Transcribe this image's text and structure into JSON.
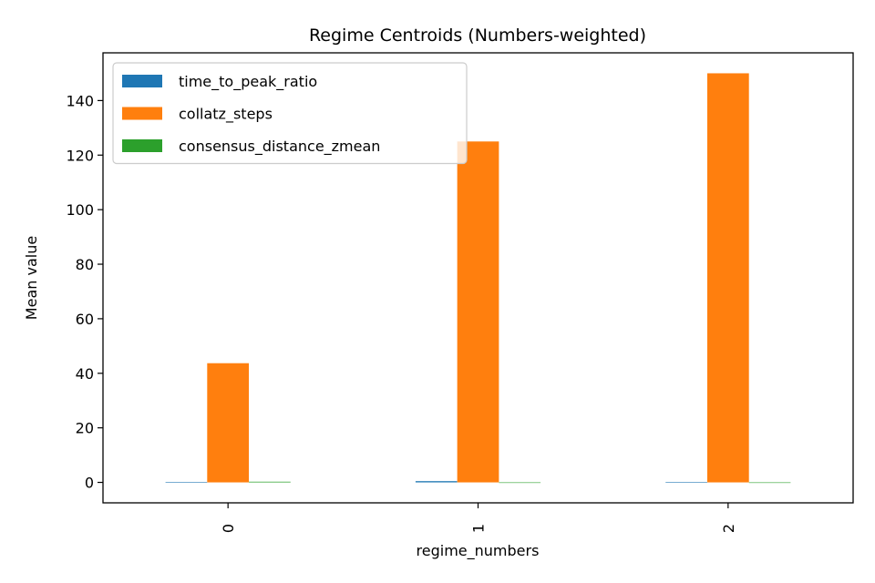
{
  "chart_data": {
    "type": "bar",
    "title": "Regime Centroids (Numbers-weighted)",
    "xlabel": "regime_numbers",
    "ylabel": "Mean value",
    "categories": [
      "0",
      "1",
      "2"
    ],
    "series": [
      {
        "name": "time_to_peak_ratio",
        "color": "#1f77b4",
        "values": [
          0.1,
          0.45,
          0.15
        ]
      },
      {
        "name": "collatz_steps",
        "color": "#ff7f0e",
        "values": [
          43.7,
          125,
          150
        ]
      },
      {
        "name": "consensus_distance_zmean",
        "color": "#2ca02c",
        "values": [
          0.25,
          -0.15,
          -0.1
        ]
      }
    ],
    "ylim": [
      -7.5,
      157.5
    ],
    "yticks": [
      0,
      20,
      40,
      60,
      80,
      100,
      120,
      140
    ],
    "legend_position": "upper-left",
    "grid": false
  }
}
